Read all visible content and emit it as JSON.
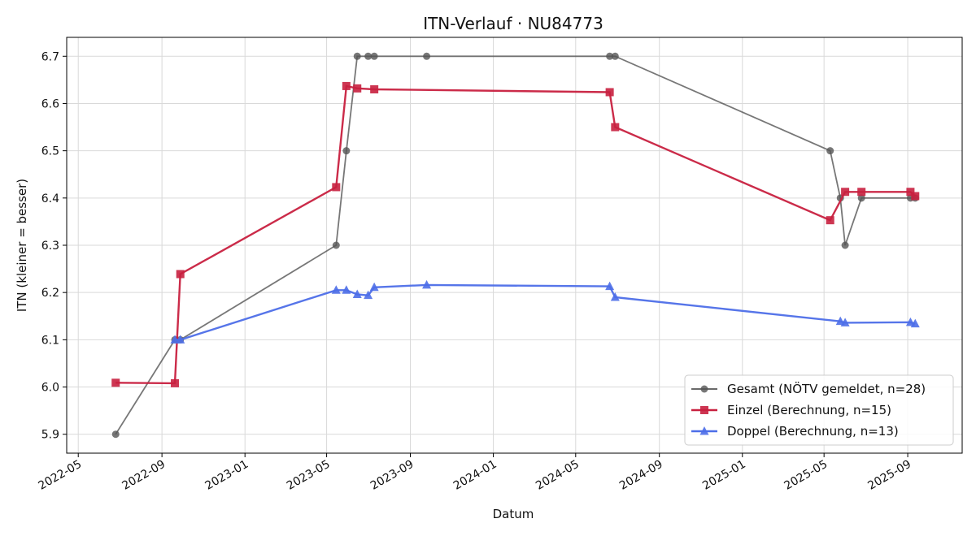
{
  "chart_data": {
    "type": "line",
    "title": "ITN-Verlauf · NU84773",
    "xlabel": "Datum",
    "ylabel": "ITN  (kleiner = besser)",
    "x_type": "date",
    "xlim": [
      "2022-04-14",
      "2025-11-20"
    ],
    "ylim": [
      5.86,
      6.74
    ],
    "grid": true,
    "legend_position": "lower-right",
    "x_ticks": [
      "2022-05-01",
      "2022-09-01",
      "2023-01-01",
      "2023-05-01",
      "2023-09-01",
      "2024-01-01",
      "2024-05-01",
      "2024-09-01",
      "2025-01-01",
      "2025-05-01",
      "2025-09-01"
    ],
    "x_tick_labels": [
      "2022-05",
      "2022-09",
      "2023-01",
      "2023-05",
      "2023-09",
      "2024-01",
      "2024-05",
      "2024-09",
      "2025-01",
      "2025-05",
      "2025-09"
    ],
    "y_ticks": [
      5.9,
      6.0,
      6.1,
      6.2,
      6.3,
      6.4,
      6.5,
      6.6,
      6.7
    ],
    "y_tick_labels": [
      "5.9",
      "6.0",
      "6.1",
      "6.2",
      "6.3",
      "6.4",
      "6.5",
      "6.6",
      "6.7"
    ],
    "series": [
      {
        "name": "Gesamt (NÖTV gemeldet, n=28)",
        "color": "#555555",
        "marker": "circle",
        "points": [
          [
            "2022-06-25",
            5.9
          ],
          [
            "2022-09-20",
            6.1
          ],
          [
            "2022-09-28",
            6.1
          ],
          [
            "2023-05-15",
            6.3
          ],
          [
            "2023-05-30",
            6.5
          ],
          [
            "2023-06-15",
            6.7
          ],
          [
            "2023-07-01",
            6.7
          ],
          [
            "2023-07-10",
            6.7
          ],
          [
            "2023-09-25",
            6.7
          ],
          [
            "2024-06-20",
            6.7
          ],
          [
            "2024-06-28",
            6.7
          ],
          [
            "2025-05-10",
            6.5
          ],
          [
            "2025-05-25",
            6.4
          ],
          [
            "2025-06-01",
            6.3
          ],
          [
            "2025-06-25",
            6.4
          ],
          [
            "2025-09-05",
            6.4
          ],
          [
            "2025-09-12",
            6.4
          ]
        ]
      },
      {
        "name": "Einzel (Berechnung, n=15)",
        "color": "#c8203f",
        "marker": "square",
        "points": [
          [
            "2022-06-25",
            6.009
          ],
          [
            "2022-09-20",
            6.008
          ],
          [
            "2022-09-28",
            6.239
          ],
          [
            "2023-05-15",
            6.423
          ],
          [
            "2023-05-30",
            6.637
          ],
          [
            "2023-06-15",
            6.632
          ],
          [
            "2023-07-10",
            6.63
          ],
          [
            "2024-06-20",
            6.624
          ],
          [
            "2024-06-28",
            6.55
          ],
          [
            "2025-05-10",
            6.353
          ],
          [
            "2025-06-01",
            6.413
          ],
          [
            "2025-06-25",
            6.413
          ],
          [
            "2025-09-05",
            6.413
          ],
          [
            "2025-09-12",
            6.404
          ]
        ]
      },
      {
        "name": "Doppel (Berechnung, n=13)",
        "color": "#4d6ee8",
        "marker": "triangle",
        "points": [
          [
            "2022-09-20",
            6.1
          ],
          [
            "2022-09-28",
            6.1
          ],
          [
            "2023-05-15",
            6.205
          ],
          [
            "2023-05-30",
            6.205
          ],
          [
            "2023-06-15",
            6.196
          ],
          [
            "2023-07-01",
            6.194
          ],
          [
            "2023-07-10",
            6.211
          ],
          [
            "2023-09-25",
            6.216
          ],
          [
            "2024-06-20",
            6.213
          ],
          [
            "2024-06-28",
            6.19
          ],
          [
            "2025-05-25",
            6.139
          ],
          [
            "2025-06-01",
            6.136
          ],
          [
            "2025-09-05",
            6.137
          ],
          [
            "2025-09-12",
            6.134
          ]
        ]
      }
    ]
  }
}
